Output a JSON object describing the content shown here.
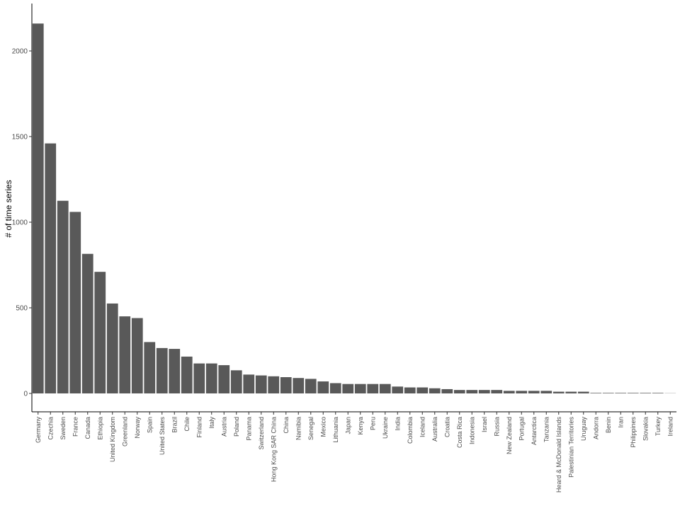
{
  "chart_data": {
    "type": "bar",
    "title": "",
    "xlabel": "",
    "ylabel": "# of time series",
    "ylim": [
      0,
      2230
    ],
    "yticks": [
      0,
      500,
      1000,
      1500,
      2000
    ],
    "grid": false,
    "bar_color": "#595959",
    "axis_color": "#000000",
    "categories": [
      "Germany",
      "Czechia",
      "Sweden",
      "France",
      "Canada",
      "Ethiopia",
      "United Kingdom",
      "Greenland",
      "Norway",
      "Spain",
      "United States",
      "Brazil",
      "Chile",
      "Finland",
      "Italy",
      "Austria",
      "Poland",
      "Panama",
      "Switzerland",
      "Hong Kong SAR China",
      "China",
      "Namibia",
      "Senegal",
      "Mexico",
      "Lithuania",
      "Japan",
      "Kenya",
      "Peru",
      "Ukraine",
      "India",
      "Colombia",
      "Iceland",
      "Australia",
      "Croatia",
      "Costa Rica",
      "Indonesia",
      "Israel",
      "Russia",
      "New Zealand",
      "Portugal",
      "Antarctica",
      "Tanzania",
      "Heard & McDonald Islands",
      "Palestinian Territories",
      "Uruguay",
      "Andorra",
      "Benin",
      "Iran",
      "Philippines",
      "Slovakia",
      "Turkey",
      "Ireland"
    ],
    "values": [
      2160,
      1460,
      1125,
      1060,
      815,
      710,
      525,
      450,
      440,
      300,
      265,
      260,
      215,
      175,
      175,
      165,
      135,
      110,
      105,
      100,
      95,
      90,
      85,
      70,
      60,
      55,
      55,
      55,
      55,
      40,
      35,
      35,
      30,
      25,
      20,
      20,
      20,
      20,
      15,
      15,
      15,
      15,
      10,
      10,
      10,
      3,
      3,
      3,
      3,
      3,
      3,
      1
    ]
  }
}
